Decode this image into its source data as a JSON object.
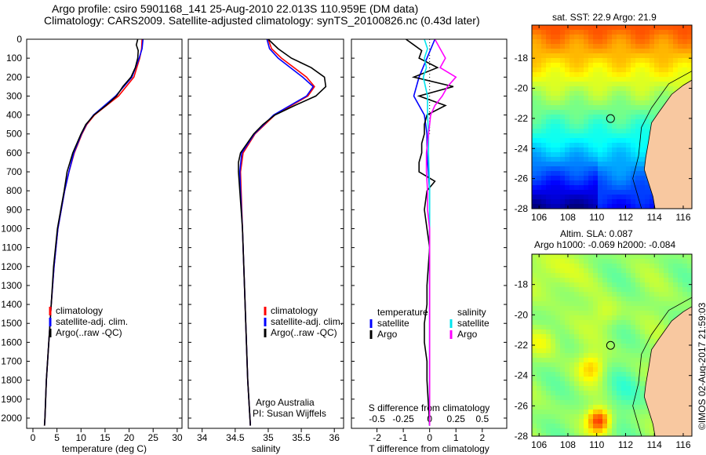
{
  "title_line1": "Argo profile: csiro 5901168_141 25-Aug-2010 22.013S 110.959E (DM data)",
  "title_line2": "Climatology: CARS2009. Satellite-adjusted climatology: synTS_20100826.nc (0.43d later)",
  "colors": {
    "climatology": "#ff0000",
    "satellite": "#0000ff",
    "argo": "#000000",
    "sal_satellite": "#00e5ee",
    "sal_argo": "#ff00ff",
    "land": "#f8c8a0"
  },
  "chart_data": [
    {
      "type": "line",
      "name": "temperature",
      "xlabel": "temperature (deg C)",
      "xlim": [
        -1.3,
        31
      ],
      "ylim": [
        2054,
        0
      ],
      "xticks": [
        "0",
        "5",
        "10",
        "15",
        "20",
        "25",
        "30"
      ],
      "xtick_values": [
        0,
        5,
        10,
        15,
        20,
        25,
        30
      ],
      "yticks": [
        0,
        100,
        200,
        300,
        400,
        500,
        600,
        700,
        800,
        900,
        1000,
        1100,
        1200,
        1300,
        1400,
        1500,
        1600,
        1700,
        1800,
        1900,
        2000
      ],
      "legend": [
        "climatology",
        "satellite-adj. clim.",
        "Argo(..raw -QC)"
      ],
      "series": [
        {
          "name": "climatology",
          "color": "#ff0000",
          "depth": [
            0,
            50,
            100,
            200,
            300,
            400,
            450,
            500,
            600,
            700,
            800,
            1000,
            1200,
            1400,
            1600,
            1800,
            2000,
            2040
          ],
          "values": [
            22.7,
            22.6,
            22.2,
            21,
            17.8,
            12.8,
            11.2,
            10.2,
            8.6,
            7.5,
            6.6,
            5.2,
            4.4,
            3.8,
            3.3,
            2.8,
            2.5,
            2.4
          ]
        },
        {
          "name": "satellite-adj. clim.",
          "color": "#0000ff",
          "depth": [
            0,
            50,
            100,
            200,
            300,
            400,
            450,
            500,
            600,
            700,
            800,
            1000,
            1200,
            1400,
            1600,
            1800,
            2000,
            2040
          ],
          "values": [
            22.9,
            22.7,
            22.1,
            20.6,
            17.2,
            12.6,
            11.1,
            10.1,
            8.5,
            7.5,
            6.6,
            5.2,
            4.4,
            3.8,
            3.3,
            2.8,
            2.5,
            2.4
          ]
        },
        {
          "name": "Argo(..raw -QC)",
          "color": "#000000",
          "depth": [
            0,
            30,
            60,
            100,
            150,
            200,
            250,
            300,
            350,
            400,
            450,
            500,
            600,
            700,
            750,
            800,
            900,
            1000,
            1200,
            1400,
            1600,
            1800,
            2000,
            2040
          ],
          "values": [
            21.8,
            21.5,
            21.9,
            21.8,
            21.3,
            20.4,
            18.7,
            17.4,
            15.2,
            12.7,
            11,
            10,
            8.3,
            7.1,
            6.8,
            6.5,
            5.8,
            5.1,
            4.3,
            3.8,
            3.3,
            2.8,
            2.5,
            2.4
          ]
        }
      ]
    },
    {
      "type": "line",
      "name": "salinity",
      "xlabel": "salinity",
      "xlim": [
        33.79,
        36.14
      ],
      "ylim": [
        2054,
        0
      ],
      "xticks": [
        "34",
        "34.5",
        "35",
        "35.5",
        "36"
      ],
      "xtick_values": [
        34,
        34.5,
        35,
        35.5,
        36
      ],
      "legend": [
        "climatology",
        "satellite-adj. clim.",
        "Argo(..raw -QC)"
      ],
      "annotation": [
        "Argo Australia",
        "PI: Susan Wijffels"
      ],
      "series": [
        {
          "name": "climatology",
          "color": "#ff0000",
          "depth": [
            0,
            50,
            100,
            200,
            250,
            300,
            400,
            500,
            600,
            700,
            800,
            1000,
            1200,
            1500,
            1800,
            2040
          ],
          "values": [
            35,
            35.05,
            35.2,
            35.58,
            35.7,
            35.6,
            35.1,
            34.8,
            34.62,
            34.58,
            34.59,
            34.61,
            34.63,
            34.66,
            34.69,
            34.73
          ]
        },
        {
          "name": "satellite-adj. clim.",
          "color": "#0000ff",
          "depth": [
            0,
            50,
            100,
            200,
            250,
            300,
            400,
            500,
            600,
            700,
            800,
            1000,
            1200,
            1500,
            1800,
            2040
          ],
          "values": [
            34.98,
            35.02,
            35.15,
            35.52,
            35.68,
            35.58,
            35.08,
            34.79,
            34.6,
            34.57,
            34.58,
            34.61,
            34.63,
            34.66,
            34.69,
            34.73
          ]
        },
        {
          "name": "Argo(..raw -QC)",
          "color": "#000000",
          "depth": [
            0,
            50,
            100,
            150,
            200,
            250,
            300,
            350,
            400,
            450,
            500,
            600,
            650,
            700,
            800,
            900,
            1000,
            1200,
            1500,
            1800,
            2040
          ],
          "values": [
            35,
            35.15,
            35.35,
            35.65,
            35.85,
            35.87,
            35.72,
            35.4,
            35.1,
            34.92,
            34.78,
            34.58,
            34.55,
            34.55,
            34.57,
            34.59,
            34.61,
            34.63,
            34.66,
            34.69,
            34.73
          ]
        }
      ]
    },
    {
      "type": "line",
      "name": "difference",
      "xlabel": "T difference from climatology",
      "xlim": [
        -2.97,
        2.93
      ],
      "ylim": [
        2054,
        0
      ],
      "xticks": [
        "-2",
        "-1",
        "0",
        "1",
        "2"
      ],
      "xtick_values": [
        -2,
        -1,
        0,
        1,
        2
      ],
      "s_label": "S difference from climatology",
      "s_ticks": [
        "-0.5",
        "-0.25",
        "0",
        "0.25",
        "0.5"
      ],
      "s_tick_values": [
        -0.5,
        -0.25,
        0,
        0.25,
        0.5
      ],
      "legend_temperature": {
        "title": "temperature",
        "items": [
          "satellite",
          "Argo"
        ]
      },
      "legend_salinity": {
        "title": "salinity",
        "items": [
          "satellite",
          "Argo"
        ]
      },
      "series": [
        {
          "name": "T satellite",
          "color": "#0000ff",
          "depth": [
            0,
            100,
            200,
            300,
            400,
            500,
            600,
            800,
            1000,
            1500,
            2040
          ],
          "values": [
            0.2,
            -0.1,
            -0.4,
            -0.6,
            -0.2,
            -0.1,
            -0.1,
            0,
            0,
            0,
            0
          ]
        },
        {
          "name": "T Argo",
          "color": "#000000",
          "depth": [
            0,
            30,
            60,
            100,
            150,
            200,
            250,
            300,
            350,
            400,
            450,
            500,
            550,
            600,
            650,
            700,
            750,
            800,
            900,
            1000,
            1100,
            1200,
            1300,
            1400,
            1500,
            1600,
            1700,
            1800,
            2040
          ],
          "values": [
            -0.9,
            -0.6,
            -0.3,
            -0.4,
            0.3,
            -0.6,
            0.9,
            -0.4,
            0.6,
            -0.1,
            -0.2,
            -0.2,
            -0.3,
            -0.3,
            -0.4,
            -0.4,
            0.2,
            -0.1,
            -0.2,
            -0.1,
            0,
            -0.05,
            -0.1,
            -0.1,
            -0.2,
            -0.2,
            -0.1,
            -0.1,
            0
          ]
        },
        {
          "name": "S satellite",
          "color": "#00e5ee",
          "depth": [
            0,
            50,
            100,
            150,
            200,
            300,
            400,
            500,
            600,
            800,
            1000,
            1500,
            2040
          ],
          "values": [
            -0.05,
            -0.02,
            -0.05,
            -0.03,
            -0.06,
            -0.02,
            -0.02,
            -0.01,
            -0.01,
            0,
            0,
            0,
            0
          ]
        },
        {
          "name": "S Argo",
          "color": "#ff00ff",
          "depth": [
            0,
            50,
            100,
            150,
            200,
            250,
            300,
            350,
            400,
            450,
            500,
            600,
            700,
            800,
            900,
            1000,
            1200,
            1500,
            1800,
            2040
          ],
          "values": [
            0.05,
            0.1,
            0.15,
            0.1,
            0.25,
            0.17,
            0.12,
            0.05,
            0.01,
            0,
            -0.01,
            -0.03,
            -0.03,
            -0.02,
            -0.02,
            0,
            0,
            0,
            0,
            0
          ]
        }
      ]
    }
  ],
  "sst_map": {
    "label": "sat. SST: 22.9 Argo: 21.9",
    "xticks": [
      "106",
      "108",
      "110",
      "112",
      "114",
      "116"
    ],
    "yticks": [
      "-18",
      "-20",
      "-22",
      "-24",
      "-26",
      "-28"
    ]
  },
  "sla_map": {
    "label1": "Altim. SLA: 0.087",
    "label2": "Argo h1000: -0.069 h2000: -0.084",
    "xticks": [
      "106",
      "108",
      "110",
      "112",
      "114",
      "116"
    ],
    "yticks": [
      "-18",
      "-20",
      "-22",
      "-24",
      "-26",
      "-28"
    ]
  },
  "profile_location": {
    "lon": 110.959,
    "lat": -22.013
  },
  "credit": "©IMOS 02-Aug-2017 21:59:03"
}
